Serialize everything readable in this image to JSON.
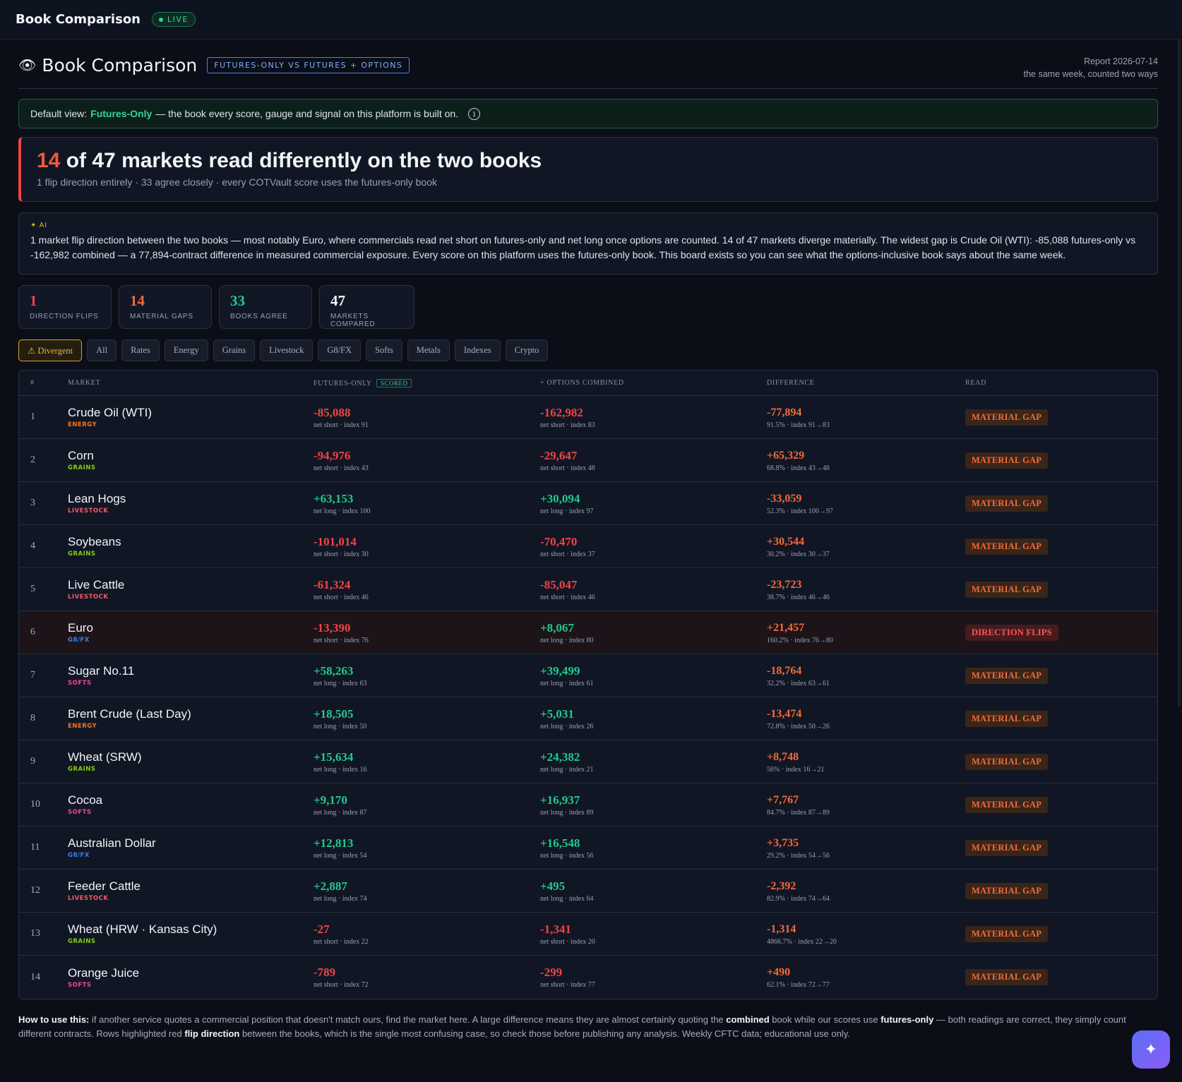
{
  "app": {
    "brand": "Book Comparison",
    "live": "LIVE"
  },
  "header": {
    "icon": "binoculars-icon",
    "title": "Book Comparison",
    "badge": "FUTURES-ONLY VS FUTURES + OPTIONS",
    "report": "Report 2026-07-14",
    "report_sub": "the same week, counted two ways"
  },
  "default_view": {
    "prefix": "Default view:",
    "book": "Futures-Only",
    "rest": "— the book every score, gauge and signal on this platform is built on."
  },
  "hero": {
    "count": "14",
    "headline": "of 47 markets read differently on the two books",
    "sub": "1 flip direction entirely · 33 agree closely · every COTVault score uses the futures-only book"
  },
  "ai": {
    "tag": "✦ AI",
    "text": "1 market flip direction between the two books — most notably Euro, where commercials read net short on futures-only and net long once options are counted. 14 of 47 markets diverge materially. The widest gap is Crude Oil (WTI): -85,088 futures-only vs -162,982 combined — a 77,894-contract difference in measured commercial exposure. Every score on this platform uses the futures-only book. This board exists so you can see what the options-inclusive book says about the same week."
  },
  "stats": [
    {
      "value": "1",
      "label": "DIRECTION FLIPS",
      "color": "#ef4444"
    },
    {
      "value": "14",
      "label": "MATERIAL GAPS",
      "color": "#f26b3a"
    },
    {
      "value": "33",
      "label": "BOOKS AGREE",
      "color": "#22c98e"
    },
    {
      "value": "47",
      "label": "MARKETS COMPARED",
      "color": "#f3f4f7"
    }
  ],
  "tabs": [
    "⚠ Divergent",
    "All",
    "Rates",
    "Energy",
    "Grains",
    "Livestock",
    "G8/FX",
    "Softs",
    "Metals",
    "Indexes",
    "Crypto"
  ],
  "table": {
    "headers": [
      "#",
      "MARKET",
      "FUTURES-ONLY",
      "+ OPTIONS COMBINED",
      "DIFFERENCE",
      "READ"
    ],
    "scored": "SCORED",
    "rows": [
      {
        "n": "1",
        "market": "Crude Oil (WTI)",
        "cat": "ENERGY",
        "catColor": "#f97316",
        "fo": "-85,088",
        "fo_sub": "net short · index 91",
        "co": "-162,982",
        "co_sub": "net short · index 83",
        "diff": "-77,894",
        "diff_sub": "91.5% · index 91→83",
        "read": "MATERIAL GAP",
        "flip": false
      },
      {
        "n": "2",
        "market": "Corn",
        "cat": "GRAINS",
        "catColor": "#84cc16",
        "fo": "-94,976",
        "fo_sub": "net short · index 43",
        "co": "-29,647",
        "co_sub": "net short · index 48",
        "diff": "+65,329",
        "diff_sub": "68.8% · index 43→48",
        "read": "MATERIAL GAP",
        "flip": false
      },
      {
        "n": "3",
        "market": "Lean Hogs",
        "cat": "LIVESTOCK",
        "catColor": "#f05a6b",
        "fo": "+63,153",
        "fo_sub": "net long · index 100",
        "co": "+30,094",
        "co_sub": "net long · index 97",
        "diff": "-33,059",
        "diff_sub": "52.3% · index 100→97",
        "read": "MATERIAL GAP",
        "flip": false
      },
      {
        "n": "4",
        "market": "Soybeans",
        "cat": "GRAINS",
        "catColor": "#84cc16",
        "fo": "-101,014",
        "fo_sub": "net short · index 30",
        "co": "-70,470",
        "co_sub": "net short · index 37",
        "diff": "+30,544",
        "diff_sub": "30.2% · index 30→37",
        "read": "MATERIAL GAP",
        "flip": false
      },
      {
        "n": "5",
        "market": "Live Cattle",
        "cat": "LIVESTOCK",
        "catColor": "#f05a6b",
        "fo": "-61,324",
        "fo_sub": "net short · index 46",
        "co": "-85,047",
        "co_sub": "net short · index 46",
        "diff": "-23,723",
        "diff_sub": "38.7% · index 46→46",
        "read": "MATERIAL GAP",
        "flip": false
      },
      {
        "n": "6",
        "market": "Euro",
        "cat": "G8/FX",
        "catColor": "#3b82f6",
        "fo": "-13,390",
        "fo_sub": "net short · index 76",
        "co": "+8,067",
        "co_sub": "net long · index 80",
        "diff": "+21,457",
        "diff_sub": "160.2% · index 76→80",
        "read": "DIRECTION FLIPS",
        "flip": true
      },
      {
        "n": "7",
        "market": "Sugar No.11",
        "cat": "SOFTS",
        "catColor": "#ec4899",
        "fo": "+58,263",
        "fo_sub": "net long · index 63",
        "co": "+39,499",
        "co_sub": "net long · index 61",
        "diff": "-18,764",
        "diff_sub": "32.2% · index 63→61",
        "read": "MATERIAL GAP",
        "flip": false
      },
      {
        "n": "8",
        "market": "Brent Crude (Last Day)",
        "cat": "ENERGY",
        "catColor": "#f97316",
        "fo": "+18,505",
        "fo_sub": "net long · index 50",
        "co": "+5,031",
        "co_sub": "net long · index 26",
        "diff": "-13,474",
        "diff_sub": "72.8% · index 50→26",
        "read": "MATERIAL GAP",
        "flip": false
      },
      {
        "n": "9",
        "market": "Wheat (SRW)",
        "cat": "GRAINS",
        "catColor": "#84cc16",
        "fo": "+15,634",
        "fo_sub": "net long · index 16",
        "co": "+24,382",
        "co_sub": "net long · index 21",
        "diff": "+8,748",
        "diff_sub": "56% · index 16→21",
        "read": "MATERIAL GAP",
        "flip": false
      },
      {
        "n": "10",
        "market": "Cocoa",
        "cat": "SOFTS",
        "catColor": "#ec4899",
        "fo": "+9,170",
        "fo_sub": "net long · index 87",
        "co": "+16,937",
        "co_sub": "net long · index 89",
        "diff": "+7,767",
        "diff_sub": "84.7% · index 87→89",
        "read": "MATERIAL GAP",
        "flip": false
      },
      {
        "n": "11",
        "market": "Australian Dollar",
        "cat": "G8/FX",
        "catColor": "#3b82f6",
        "fo": "+12,813",
        "fo_sub": "net long · index 54",
        "co": "+16,548",
        "co_sub": "net long · index 56",
        "diff": "+3,735",
        "diff_sub": "29.2% · index 54→56",
        "read": "MATERIAL GAP",
        "flip": false
      },
      {
        "n": "12",
        "market": "Feeder Cattle",
        "cat": "LIVESTOCK",
        "catColor": "#f05a6b",
        "fo": "+2,887",
        "fo_sub": "net long · index 74",
        "co": "+495",
        "co_sub": "net long · index 64",
        "diff": "-2,392",
        "diff_sub": "82.9% · index 74→64",
        "read": "MATERIAL GAP",
        "flip": false
      },
      {
        "n": "13",
        "market": "Wheat (HRW · Kansas City)",
        "cat": "GRAINS",
        "catColor": "#84cc16",
        "fo": "-27",
        "fo_sub": "net short · index 22",
        "co": "-1,341",
        "co_sub": "net short · index 20",
        "diff": "-1,314",
        "diff_sub": "4866.7% · index 22→20",
        "read": "MATERIAL GAP",
        "flip": false
      },
      {
        "n": "14",
        "market": "Orange Juice",
        "cat": "SOFTS",
        "catColor": "#ec4899",
        "fo": "-789",
        "fo_sub": "net short · index 72",
        "co": "-299",
        "co_sub": "net short · index 77",
        "diff": "+490",
        "diff_sub": "62.1% · index 72→77",
        "read": "MATERIAL GAP",
        "flip": false
      }
    ]
  },
  "footer": {
    "lead": "How to use this:",
    "t1": " if another service quotes a commercial position that doesn't match ours, find the market here. A large difference means they are almost certainly quoting the ",
    "b1": "combined",
    "t2": " book while our scores use ",
    "b2": "futures-only",
    "t3": " — both readings are correct, they simply count different contracts. Rows highlighted red ",
    "b3": "flip direction",
    "t4": " between the books, which is the single most confusing case, so check those before publishing any analysis. Weekly CFTC data; educational use only."
  },
  "fab": {
    "icon": "sparkle-icon",
    "glyph": "✦"
  }
}
